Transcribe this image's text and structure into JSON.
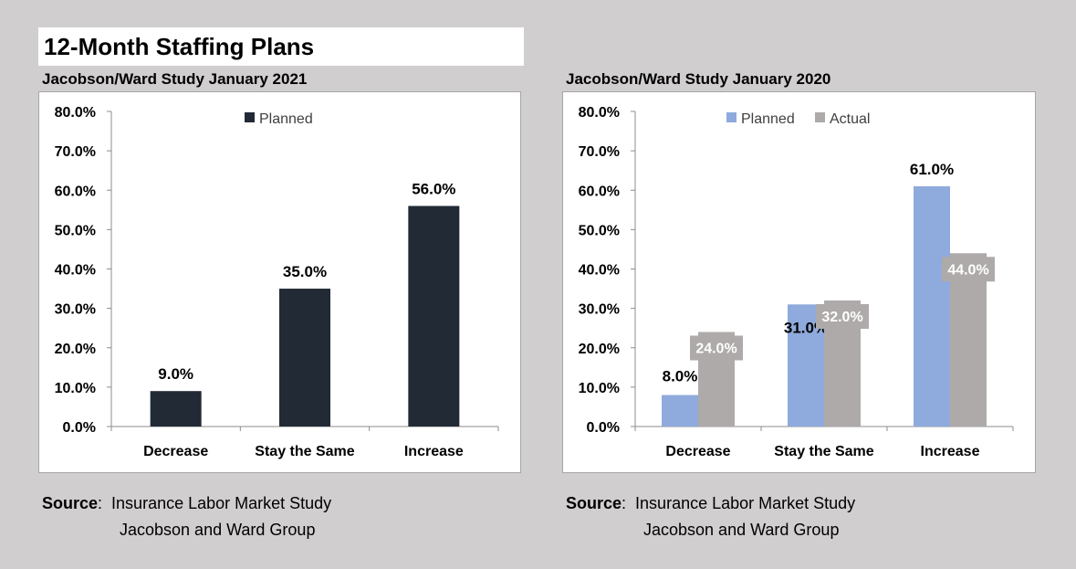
{
  "main_title": "12-Month Staffing Plans",
  "chart_data": [
    {
      "type": "bar",
      "title": "Jacobson/Ward Study January 2021",
      "categories": [
        "Decrease",
        "Stay the Same",
        "Increase"
      ],
      "series": [
        {
          "name": "Planned",
          "color": "#222a35",
          "values": [
            9.0,
            35.0,
            56.0
          ],
          "labels": [
            "9.0%",
            "35.0%",
            "56.0%"
          ]
        }
      ],
      "ylim": [
        0,
        80
      ],
      "yticks": [
        0,
        10,
        20,
        30,
        40,
        50,
        60,
        70,
        80
      ],
      "ytick_labels": [
        "0.0%",
        "10.0%",
        "20.0%",
        "30.0%",
        "40.0%",
        "50.0%",
        "60.0%",
        "70.0%",
        "80.0%"
      ],
      "legend": "top-center",
      "xlabel": "",
      "ylabel": ""
    },
    {
      "type": "bar",
      "title": "Jacobson/Ward Study January 2020",
      "categories": [
        "Decrease",
        "Stay the Same",
        "Increase"
      ],
      "series": [
        {
          "name": "Planned",
          "color": "#8faadc",
          "values": [
            8.0,
            31.0,
            61.0
          ],
          "labels": [
            "8.0%",
            "31.0%",
            "61.0%"
          ]
        },
        {
          "name": "Actual",
          "color": "#aeaaaa",
          "values": [
            24.0,
            32.0,
            44.0
          ],
          "labels": [
            "24.0%",
            "32.0%",
            "44.0%"
          ]
        }
      ],
      "ylim": [
        0,
        80
      ],
      "yticks": [
        0,
        10,
        20,
        30,
        40,
        50,
        60,
        70,
        80
      ],
      "ytick_labels": [
        "0.0%",
        "10.0%",
        "20.0%",
        "30.0%",
        "40.0%",
        "50.0%",
        "60.0%",
        "70.0%",
        "80.0%"
      ],
      "legend": "top-center",
      "xlabel": "",
      "ylabel": ""
    }
  ],
  "sources": [
    {
      "label": "Source",
      "line1": "Insurance Labor Market Study",
      "line2": "Jacobson and Ward Group"
    },
    {
      "label": "Source",
      "line1": "Insurance Labor Market Study",
      "line2": "Jacobson and Ward Group"
    }
  ]
}
